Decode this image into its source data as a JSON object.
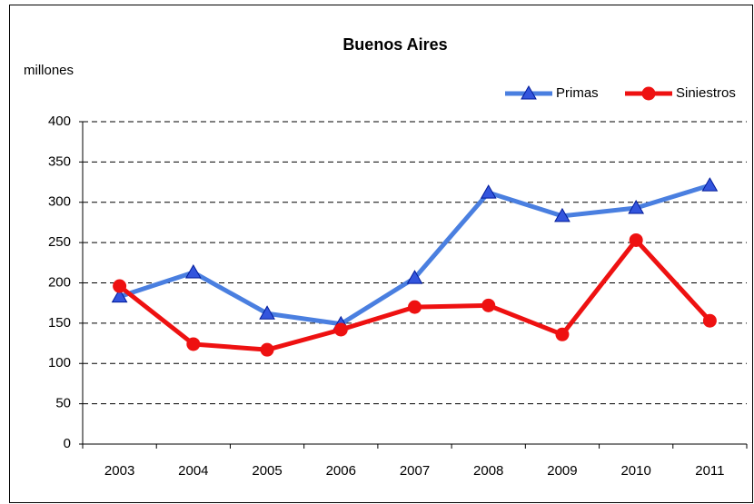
{
  "chart_data": {
    "type": "line",
    "title": "Buenos Aires",
    "y_label": "millones",
    "categories": [
      "2003",
      "2004",
      "2005",
      "2006",
      "2007",
      "2008",
      "2009",
      "2010",
      "2011"
    ],
    "series": [
      {
        "name": "Primas",
        "color": "#4a7fe0",
        "marker": "triangle",
        "marker_color": "#3355dd",
        "values": [
          183,
          213,
          162,
          149,
          206,
          312,
          283,
          293,
          321
        ]
      },
      {
        "name": "Siniestros",
        "color": "#ee1111",
        "marker": "circle",
        "marker_color": "#ee1111",
        "values": [
          196,
          124,
          117,
          142,
          170,
          172,
          136,
          253,
          153
        ]
      }
    ],
    "ylim": [
      0,
      400
    ],
    "yticks": [
      0,
      50,
      100,
      150,
      200,
      250,
      300,
      350,
      400
    ],
    "grid": true,
    "legend": "top-right"
  }
}
